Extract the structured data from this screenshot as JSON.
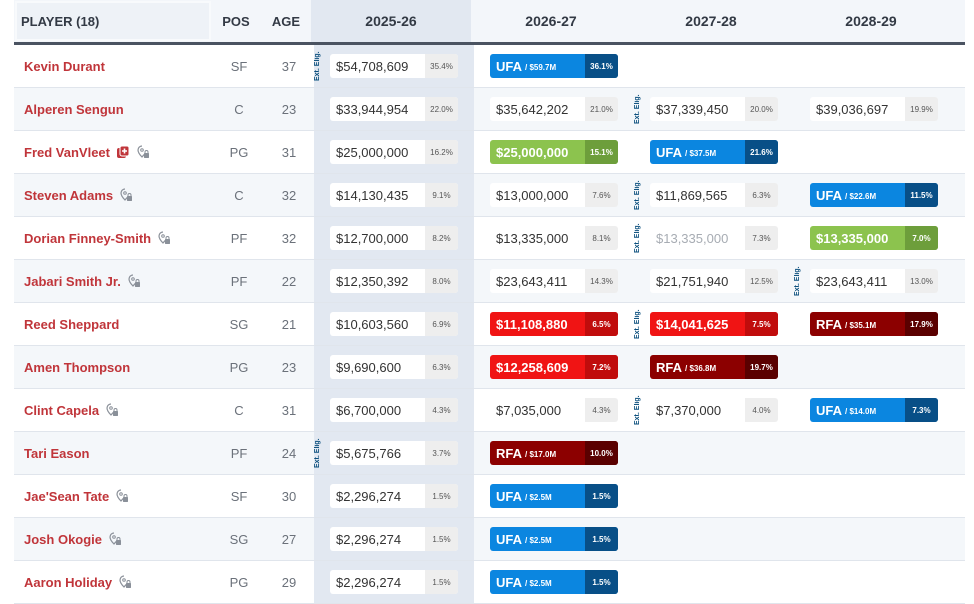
{
  "header": {
    "player_label": "PLAYER (18)",
    "pos_label": "POS",
    "age_label": "AGE",
    "years": [
      "2025-26",
      "2026-27",
      "2027-28",
      "2028-29"
    ]
  },
  "ext_elig_label": "Ext. Elig.",
  "colors": {
    "player_name": "#c0353a",
    "ufa": "#0b86e0",
    "ufa_dark": "#084f87",
    "rfa": "#8c0000",
    "rfa_dark": "#5a0000",
    "option_green": "#8cc34e",
    "rookie_red": "#f01414",
    "highlight_col": "#e2e8f1"
  },
  "rows": [
    {
      "name": "Kevin Durant",
      "pos": "SF",
      "age": "37",
      "icons": [],
      "y": [
        {
          "v": "$54,708,609",
          "p": "35.4%"
        },
        {
          "fa": "UFA",
          "amt": "/ $59.7M",
          "p": "36.1%"
        },
        null,
        null
      ]
    },
    {
      "name": "Alperen Sengun",
      "pos": "C",
      "age": "23",
      "icons": [],
      "y": [
        {
          "v": "$33,944,954",
          "p": "22.0%"
        },
        {
          "v": "$35,642,202",
          "p": "21.0%"
        },
        {
          "v": "$37,339,450",
          "p": "20.0%"
        },
        {
          "v": "$39,036,697",
          "p": "19.9%"
        }
      ]
    },
    {
      "name": "Fred VanVleet",
      "pos": "PG",
      "age": "31",
      "icons": [
        "injury-icon",
        "no-trade-icon"
      ],
      "y": [
        {
          "v": "$25,000,000",
          "p": "16.2%"
        },
        {
          "v": "$25,000,000",
          "p": "15.1%",
          "style": "green"
        },
        {
          "fa": "UFA",
          "amt": "/ $37.5M",
          "p": "21.6%"
        },
        null
      ]
    },
    {
      "name": "Steven Adams",
      "pos": "C",
      "age": "32",
      "icons": [
        "no-trade-icon"
      ],
      "y": [
        {
          "v": "$14,130,435",
          "p": "9.1%"
        },
        {
          "v": "$13,000,000",
          "p": "7.6%"
        },
        {
          "v": "$11,869,565",
          "p": "6.3%"
        },
        {
          "fa": "UFA",
          "amt": "/ $22.6M",
          "p": "11.5%"
        }
      ]
    },
    {
      "name": "Dorian Finney-Smith",
      "pos": "PF",
      "age": "32",
      "icons": [
        "no-trade-icon"
      ],
      "y": [
        {
          "v": "$12,700,000",
          "p": "8.2%"
        },
        {
          "v": "$13,335,000",
          "p": "8.1%"
        },
        {
          "v": "$13,335,000",
          "p": "7.3%",
          "style": "muted"
        },
        {
          "v": "$13,335,000",
          "p": "7.0%",
          "style": "green"
        }
      ]
    },
    {
      "name": "Jabari Smith Jr.",
      "pos": "PF",
      "age": "22",
      "icons": [
        "no-trade-icon"
      ],
      "y": [
        {
          "v": "$12,350,392",
          "p": "8.0%"
        },
        {
          "v": "$23,643,411",
          "p": "14.3%"
        },
        {
          "v": "$21,751,940",
          "p": "12.5%"
        },
        {
          "v": "$23,643,411",
          "p": "13.0%"
        }
      ]
    },
    {
      "name": "Reed Sheppard",
      "pos": "SG",
      "age": "21",
      "icons": [],
      "y": [
        {
          "v": "$10,603,560",
          "p": "6.9%"
        },
        {
          "v": "$11,108,880",
          "p": "6.5%",
          "style": "red"
        },
        {
          "v": "$14,041,625",
          "p": "7.5%",
          "style": "red"
        },
        {
          "fa": "RFA",
          "amt": "/ $35.1M",
          "p": "17.9%"
        }
      ]
    },
    {
      "name": "Amen Thompson",
      "pos": "PG",
      "age": "23",
      "icons": [],
      "y": [
        {
          "v": "$9,690,600",
          "p": "6.3%"
        },
        {
          "v": "$12,258,609",
          "p": "7.2%",
          "style": "red"
        },
        {
          "fa": "RFA",
          "amt": "/ $36.8M",
          "p": "19.7%"
        },
        null
      ]
    },
    {
      "name": "Clint Capela",
      "pos": "C",
      "age": "31",
      "icons": [
        "no-trade-icon"
      ],
      "y": [
        {
          "v": "$6,700,000",
          "p": "4.3%"
        },
        {
          "v": "$7,035,000",
          "p": "4.3%"
        },
        {
          "v": "$7,370,000",
          "p": "4.0%"
        },
        {
          "fa": "UFA",
          "amt": "/ $14.0M",
          "p": "7.3%"
        }
      ]
    },
    {
      "name": "Tari Eason",
      "pos": "PF",
      "age": "24",
      "icons": [],
      "y": [
        {
          "v": "$5,675,766",
          "p": "3.7%"
        },
        {
          "fa": "RFA",
          "amt": "/ $17.0M",
          "p": "10.0%"
        },
        null,
        null
      ]
    },
    {
      "name": "Jae'Sean Tate",
      "pos": "SF",
      "age": "30",
      "icons": [
        "no-trade-icon"
      ],
      "y": [
        {
          "v": "$2,296,274",
          "p": "1.5%"
        },
        {
          "fa": "UFA",
          "amt": "/ $2.5M",
          "p": "1.5%"
        },
        null,
        null
      ]
    },
    {
      "name": "Josh Okogie",
      "pos": "SG",
      "age": "27",
      "icons": [
        "no-trade-icon"
      ],
      "y": [
        {
          "v": "$2,296,274",
          "p": "1.5%"
        },
        {
          "fa": "UFA",
          "amt": "/ $2.5M",
          "p": "1.5%"
        },
        null,
        null
      ]
    },
    {
      "name": "Aaron Holiday",
      "pos": "PG",
      "age": "29",
      "icons": [
        "no-trade-icon"
      ],
      "y": [
        {
          "v": "$2,296,274",
          "p": "1.5%"
        },
        {
          "fa": "UFA",
          "amt": "/ $2.5M",
          "p": "1.5%"
        },
        null,
        null
      ]
    }
  ],
  "ext_elig_markers": [
    {
      "row": 0,
      "before_col": 0
    },
    {
      "row": 1,
      "before_col": 2
    },
    {
      "row": 3,
      "before_col": 2
    },
    {
      "row": 4,
      "before_col": 2
    },
    {
      "row": 5,
      "before_col": 3
    },
    {
      "row": 6,
      "before_col": 2
    },
    {
      "row": 8,
      "before_col": 2
    },
    {
      "row": 9,
      "before_col": 0
    }
  ]
}
